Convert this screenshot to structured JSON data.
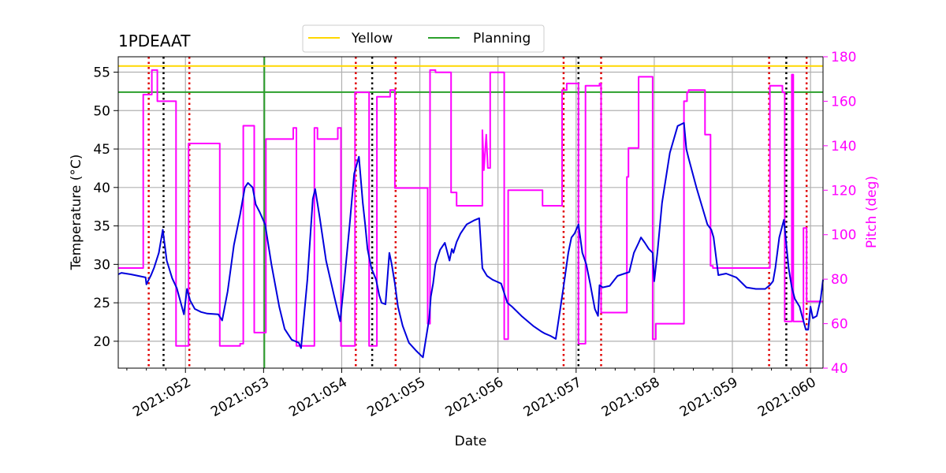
{
  "chart_data": {
    "type": "line",
    "title": "1PDEAAT",
    "xlabel": "Date",
    "ylabel_left": "Temperature ($^\\circ$C)",
    "ylabel_left_display": "Temperature (°C)",
    "ylabel_right": "Pitch (deg)",
    "x_unit": "day of year 2021",
    "xlim": [
      51.14,
      60.16
    ],
    "ylim_left": [
      16.5,
      57.0
    ],
    "ylim_right": [
      40,
      180
    ],
    "x_ticks": [
      52,
      53,
      54,
      55,
      56,
      57,
      58,
      59,
      60
    ],
    "x_tick_labels": [
      "2021:052",
      "2021:053",
      "2021:054",
      "2021:055",
      "2021:056",
      "2021:057",
      "2021:058",
      "2021:059",
      "2021:060"
    ],
    "y_ticks_left": [
      20,
      25,
      30,
      35,
      40,
      45,
      50,
      55
    ],
    "y_ticks_right": [
      40,
      60,
      80,
      100,
      120,
      140,
      160,
      180
    ],
    "grid": true,
    "legend": {
      "placement": "top-center outside",
      "entries": [
        {
          "label": "Yellow",
          "color": "#ffd700"
        },
        {
          "label": "Planning",
          "color": "#2ca02c"
        }
      ]
    },
    "hlines": [
      {
        "name": "Yellow",
        "y": 55.8,
        "color": "#ffd700"
      },
      {
        "name": "Planning",
        "y": 52.4,
        "color": "#2ca02c"
      }
    ],
    "vlines": [
      {
        "x": 53.01,
        "color": "#2ca02c",
        "style": "solid"
      },
      {
        "x": 51.53,
        "color": "#e00000",
        "style": "dotted"
      },
      {
        "x": 52.05,
        "color": "#e00000",
        "style": "dotted"
      },
      {
        "x": 54.18,
        "color": "#e00000",
        "style": "dotted"
      },
      {
        "x": 54.69,
        "color": "#e00000",
        "style": "dotted"
      },
      {
        "x": 56.84,
        "color": "#e00000",
        "style": "dotted"
      },
      {
        "x": 57.32,
        "color": "#e00000",
        "style": "dotted"
      },
      {
        "x": 59.47,
        "color": "#e00000",
        "style": "dotted"
      },
      {
        "x": 59.95,
        "color": "#e00000",
        "style": "dotted"
      },
      {
        "x": 51.72,
        "color": "#000000",
        "style": "dotted"
      },
      {
        "x": 54.39,
        "color": "#000000",
        "style": "dotted"
      },
      {
        "x": 57.03,
        "color": "#000000",
        "style": "dotted"
      },
      {
        "x": 59.69,
        "color": "#000000",
        "style": "dotted"
      }
    ],
    "series": [
      {
        "name": "Temperature",
        "axis": "left",
        "color": "#0000dd",
        "x": [
          51.14,
          51.18,
          51.3,
          51.35,
          51.49,
          51.5,
          51.56,
          51.6,
          51.66,
          51.71,
          51.76,
          51.83,
          51.89,
          51.98,
          52.02,
          52.06,
          52.12,
          52.2,
          52.28,
          52.42,
          52.47,
          52.54,
          52.62,
          52.7,
          52.76,
          52.8,
          52.86,
          52.9,
          52.95,
          53.02,
          53.1,
          53.2,
          53.27,
          53.36,
          53.45,
          53.48,
          53.56,
          53.63,
          53.66,
          53.72,
          53.8,
          53.9,
          53.98,
          54.03,
          54.1,
          54.16,
          54.22,
          54.27,
          54.3,
          54.33,
          54.38,
          54.44,
          54.48,
          54.51,
          54.56,
          54.61,
          54.64,
          54.68,
          54.72,
          54.78,
          54.86,
          54.95,
          55.04,
          55.12,
          55.14,
          55.17,
          55.2,
          55.26,
          55.32,
          55.38,
          55.41,
          55.43,
          55.47,
          55.52,
          55.6,
          55.69,
          55.76,
          55.8,
          55.86,
          55.93,
          56.04,
          56.12,
          56.18,
          56.3,
          56.45,
          56.55,
          56.6,
          56.67,
          56.74,
          56.83,
          56.9,
          56.94,
          56.98,
          57.03,
          57.08,
          57.13,
          57.18,
          57.24,
          57.28,
          57.3,
          57.34,
          57.43,
          57.53,
          57.62,
          57.68,
          57.74,
          57.8,
          57.83,
          57.88,
          57.93,
          57.98,
          58.0,
          58.04,
          58.1,
          58.2,
          58.3,
          58.38,
          58.41,
          58.44,
          58.54,
          58.68,
          58.73,
          58.76,
          58.82,
          58.92,
          59.05,
          59.18,
          59.3,
          59.37,
          59.42,
          59.48,
          59.52,
          59.55,
          59.6,
          59.66,
          59.72,
          59.76,
          59.8,
          59.86,
          59.9,
          59.94,
          59.97,
          60.0,
          60.03,
          60.08,
          60.13,
          60.16
        ],
        "y": [
          28.7,
          28.9,
          28.7,
          28.6,
          28.3,
          27.4,
          28.6,
          29.6,
          31.5,
          34.5,
          30.5,
          28.2,
          26.9,
          23.5,
          26.8,
          25.3,
          24.2,
          23.8,
          23.6,
          23.5,
          22.7,
          26.5,
          32.5,
          36.5,
          40.0,
          40.6,
          40.0,
          37.8,
          36.8,
          35.2,
          30.0,
          24.5,
          21.6,
          20.2,
          19.8,
          19.1,
          28.0,
          38.5,
          39.8,
          36.0,
          30.5,
          26.0,
          22.6,
          27.5,
          35.0,
          41.8,
          44.0,
          38.0,
          35.2,
          32.0,
          29.5,
          28.0,
          26.0,
          25.0,
          24.8,
          31.5,
          30.0,
          27.5,
          24.5,
          22.0,
          19.8,
          18.8,
          17.9,
          23.0,
          25.8,
          27.5,
          30.0,
          31.9,
          32.8,
          30.5,
          32.0,
          31.5,
          32.9,
          34.0,
          35.2,
          35.7,
          36.0,
          29.5,
          28.5,
          28.0,
          27.5,
          25.0,
          24.5,
          23.3,
          22.0,
          21.3,
          21.0,
          20.7,
          20.3,
          26.5,
          31.5,
          33.5,
          34.0,
          35.2,
          31.5,
          30.0,
          27.5,
          24.2,
          23.3,
          27.3,
          27.0,
          27.2,
          28.5,
          28.8,
          29.0,
          31.5,
          32.8,
          33.5,
          32.8,
          32.0,
          31.5,
          27.8,
          31.5,
          38.0,
          44.5,
          48.0,
          48.4,
          45.0,
          43.8,
          40.0,
          35.2,
          34.5,
          33.5,
          28.6,
          28.8,
          28.3,
          27.0,
          26.8,
          26.8,
          26.8,
          27.3,
          27.8,
          29.5,
          33.5,
          35.8,
          29.5,
          27.0,
          25.5,
          24.5,
          23.0,
          21.5,
          21.5,
          24.5,
          23.0,
          23.3,
          25.5,
          28.0
        ]
      },
      {
        "name": "Pitch",
        "axis": "right",
        "color": "#ff00ff",
        "x": [
          51.14,
          51.46,
          51.46,
          51.57,
          51.57,
          51.64,
          51.64,
          51.88,
          51.88,
          52.04,
          52.04,
          52.44,
          52.44,
          52.7,
          52.7,
          52.74,
          52.74,
          52.88,
          52.88,
          52.96,
          52.96,
          53.03,
          53.03,
          53.38,
          53.38,
          53.42,
          53.42,
          53.65,
          53.65,
          53.69,
          53.69,
          53.95,
          53.95,
          53.99,
          53.99,
          54.17,
          54.17,
          54.35,
          54.35,
          54.45,
          54.45,
          54.62,
          54.62,
          54.68,
          54.68,
          55.1,
          55.1,
          55.13,
          55.13,
          55.2,
          55.2,
          55.4,
          55.4,
          55.47,
          55.47,
          55.8,
          55.8,
          55.82,
          55.85,
          55.87,
          55.9,
          55.9,
          56.08,
          56.08,
          56.13,
          56.13,
          56.57,
          56.57,
          56.82,
          56.82,
          56.88,
          56.88,
          57.03,
          57.03,
          57.12,
          57.12,
          57.3,
          57.3,
          57.32,
          57.32,
          57.65,
          57.65,
          57.67,
          57.67,
          57.8,
          57.8,
          57.98,
          57.98,
          58.02,
          58.02,
          58.38,
          58.38,
          58.42,
          58.42,
          58.44,
          58.44,
          58.65,
          58.65,
          58.72,
          58.72,
          58.75,
          58.75,
          59.35,
          59.35,
          59.48,
          59.48,
          59.64,
          59.64,
          59.67,
          59.67,
          59.76,
          59.76,
          59.78,
          59.78,
          59.91,
          59.91,
          59.95,
          59.95,
          60.03,
          60.03,
          60.16
        ],
        "y": [
          85,
          85,
          163,
          163,
          174,
          174,
          160,
          160,
          50,
          50,
          141,
          141,
          50,
          50,
          51,
          51,
          149,
          149,
          56,
          56,
          56,
          56,
          143,
          143,
          148,
          148,
          50,
          50,
          148,
          148,
          143,
          143,
          148,
          148,
          50,
          50,
          164,
          164,
          50,
          50,
          162,
          162,
          165,
          165,
          121,
          121,
          60,
          60,
          174,
          174,
          173,
          173,
          119,
          119,
          113,
          113,
          147,
          129,
          145,
          130,
          130,
          173,
          173,
          53,
          53,
          120,
          120,
          113,
          113,
          165,
          165,
          168,
          168,
          51,
          51,
          167,
          167,
          168,
          168,
          65,
          65,
          126,
          126,
          139,
          139,
          171,
          171,
          53,
          53,
          60,
          60,
          160,
          160,
          164,
          164,
          165,
          165,
          145,
          145,
          86,
          86,
          85,
          85,
          85,
          85,
          167,
          167,
          164,
          164,
          61,
          61,
          172,
          172,
          61,
          61,
          103,
          103,
          70,
          70,
          70,
          70
        ]
      }
    ]
  }
}
